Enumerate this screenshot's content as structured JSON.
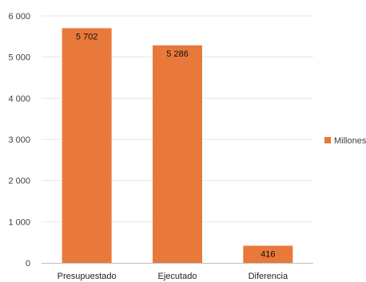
{
  "chart_data": {
    "type": "bar",
    "categories": [
      "Presupuestado",
      "Ejecutado",
      "Diferencia"
    ],
    "series": [
      {
        "name": "Millones",
        "values": [
          5702,
          5286,
          416
        ],
        "labels": [
          "5 702",
          "5 286",
          "416"
        ]
      }
    ],
    "ylim": [
      0,
      6000
    ],
    "yticks": [
      0,
      1000,
      2000,
      3000,
      4000,
      5000,
      6000
    ],
    "ytick_labels": [
      "0",
      "1 000",
      "2 000",
      "3 000",
      "4 000",
      "5 000",
      "6 000"
    ],
    "grid": true,
    "legend": "right",
    "colors": {
      "bar": "#E8793A",
      "grid": "#E6E6E6",
      "axis": "#BFBFBF"
    }
  }
}
